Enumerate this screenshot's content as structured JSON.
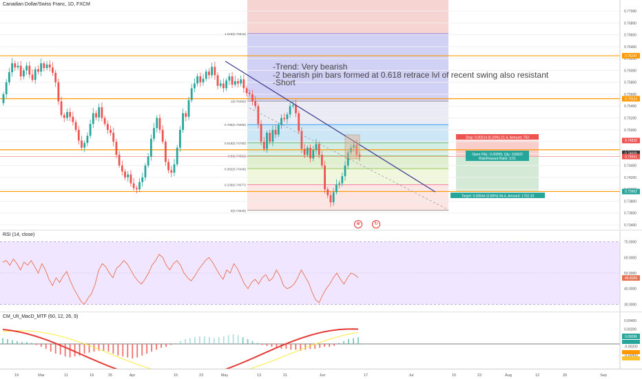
{
  "main": {
    "symbol_title": "Canadian Dollar/Swiss Franc, 1D, FXCM",
    "note_lines": [
      "-Trend: Very bearish",
      "-2 bearish pin bars formed at 0.618 retrace lvl of recent swing also resistant",
      "-Short"
    ],
    "fib_levels": [
      {
        "label": "1.618(0.76618)",
        "value": 0.76618
      },
      {
        "label": "1(0.75482)",
        "value": 0.75482
      },
      {
        "label": "0.786(0.75088)",
        "value": 0.75088
      },
      {
        "label": "0.618(0.74780)",
        "value": 0.7478
      },
      {
        "label": "0.5(0.74562)",
        "value": 0.74562
      },
      {
        "label": "0.382(0.74346)",
        "value": 0.74346
      },
      {
        "label": "0.236(0.74077)",
        "value": 0.74077
      },
      {
        "label": "0(0.73645)",
        "value": 0.73645
      }
    ],
    "y_ticks": [
      "0.77000",
      "0.76800",
      "0.76600",
      "0.76400",
      "0.76200",
      "0.76000",
      "0.75800",
      "0.75600",
      "0.75400",
      "0.75200",
      "0.75000",
      "0.74800",
      "0.74600",
      "0.74400",
      "0.74200",
      "0.74000",
      "0.73800",
      "0.73600",
      "0.73400"
    ],
    "price_labels": [
      {
        "text": "0.76247",
        "value": 0.76247,
        "color": "#ff9800"
      },
      {
        "text": "0.75524",
        "value": 0.75524,
        "color": "#ff9800"
      },
      {
        "text": "0.74820",
        "value": 0.7482,
        "color": "#ef5350"
      },
      {
        "text": "0.74606",
        "value": 0.74606,
        "color": "#333333"
      },
      {
        "text": "0.74551",
        "value": 0.74551,
        "color": "#ef5350"
      },
      {
        "text": "0.73962",
        "value": 0.73962,
        "color": "#26a69a"
      }
    ],
    "stop_label": "Stop: 0.00214 (0.29%) 21.4, Amount: 750",
    "open_label": "Open P&L: 0.00055, Qty: 116822",
    "risk_label": "Risk/Reward Ratio: 3.01",
    "target_label": "Target: 0.00644 (0.86%) 64.4, Amount: 1752.33",
    "horizontal_levels": [
      0.76247,
      0.75524,
      0.74665,
      0.73962
    ]
  },
  "rsi": {
    "title": "RSI (14, close)",
    "y_ticks": [
      "70.0000",
      "60.0000",
      "50.0000",
      "40.0000",
      "30.0000"
    ],
    "current_label": "46.8589",
    "current_value": 46.8589,
    "values": [
      57,
      58,
      55,
      59,
      56,
      52,
      57,
      55,
      58,
      54,
      50,
      56,
      52,
      46,
      42,
      47,
      44,
      48,
      51,
      45,
      40,
      36,
      32,
      30,
      34,
      37,
      43,
      52,
      56,
      54,
      50,
      47,
      53,
      55,
      58,
      56,
      52,
      48,
      45,
      43,
      46,
      50,
      55,
      58,
      62,
      60,
      55,
      52,
      56,
      58,
      55,
      50,
      47,
      45,
      48,
      52,
      55,
      58,
      60,
      57,
      53,
      49,
      46,
      52,
      50,
      56,
      53,
      48,
      43,
      40,
      44,
      46,
      43,
      47,
      49,
      45,
      47,
      52,
      48,
      42,
      40,
      41,
      43,
      47,
      52,
      48,
      44,
      38,
      33,
      31,
      36,
      40,
      43,
      47,
      50,
      46,
      43,
      47,
      50,
      49,
      47
    ]
  },
  "macd": {
    "title": "CM_Ult_MacD_MTF (60, 12, 26, 9)",
    "y_ticks": [
      "0.00400",
      "0.00200",
      "0.00000",
      "-0.00200",
      "-0.00400"
    ],
    "current_label": "0.00095",
    "histogram": [
      0.6,
      0.5,
      0.4,
      0.3,
      0.2,
      0.2,
      0.1,
      -0.1,
      -0.3,
      -0.5,
      -0.8,
      -1.0,
      -1.1,
      -1.3,
      -1.4,
      -1.3,
      -1.2,
      -1.0,
      -0.9,
      -0.8,
      -0.7,
      -0.7,
      -0.8,
      -1.0,
      -1.2,
      -1.3,
      -1.4,
      -1.5,
      -1.4,
      -1.2,
      -1.0,
      -0.8,
      -0.6,
      -0.4,
      -0.3,
      -0.1,
      0.1,
      0.3,
      0.5,
      0.6,
      0.7,
      0.8,
      0.8,
      0.7,
      0.6,
      0.7,
      0.8,
      0.9,
      1.0,
      0.9,
      0.7,
      0.5,
      0.3,
      0.1,
      -0.1,
      -0.2,
      -0.3,
      -0.4,
      -0.5,
      -0.5,
      -0.6,
      -0.6,
      -0.7,
      -0.6,
      -0.5,
      -0.5,
      -0.4,
      -0.3,
      -0.3,
      -0.2,
      0.1,
      0.3,
      0.5,
      0.6,
      0.7
    ]
  },
  "x_axis": [
    "19",
    "Mar",
    "11",
    "19",
    "25",
    "Apr",
    "15",
    "23",
    "May",
    "13",
    "21",
    "Jun",
    "17",
    "Jul",
    "15",
    "23",
    "Aug",
    "12",
    "20",
    "Sep"
  ],
  "colors": {
    "up": "#26a69a",
    "down": "#ef5350",
    "orange": "#ff9800",
    "trend": "#3f3f8f",
    "rsi_band": "#ede0ff",
    "rsi_line": "#e76f51"
  }
}
